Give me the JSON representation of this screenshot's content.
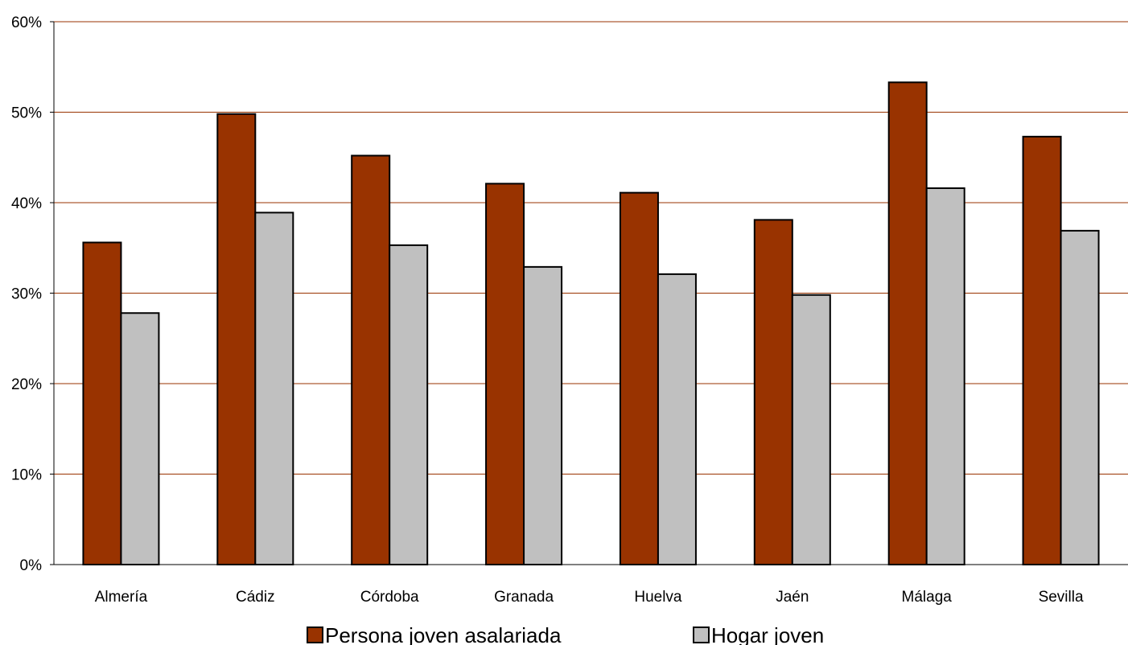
{
  "chart_data": {
    "type": "bar",
    "categories": [
      "Almería",
      "Cádiz",
      "Córdoba",
      "Granada",
      "Huelva",
      "Jaén",
      "Málaga",
      "Sevilla"
    ],
    "series": [
      {
        "name": "Persona joven asalariada",
        "values": [
          35.6,
          49.8,
          45.2,
          42.1,
          41.1,
          38.1,
          53.3,
          47.3
        ],
        "color": "#993300"
      },
      {
        "name": "Hogar joven",
        "values": [
          27.8,
          38.9,
          35.3,
          32.9,
          32.1,
          29.8,
          41.6,
          36.9
        ],
        "color": "#c0c0c0"
      }
    ],
    "yticks": [
      "0%",
      "10%",
      "20%",
      "30%",
      "40%",
      "50%",
      "60%"
    ],
    "ylim": [
      0,
      60
    ],
    "grid": true,
    "grid_color": "#993300",
    "legend_position": "bottom",
    "title": "",
    "xlabel": "",
    "ylabel": ""
  }
}
